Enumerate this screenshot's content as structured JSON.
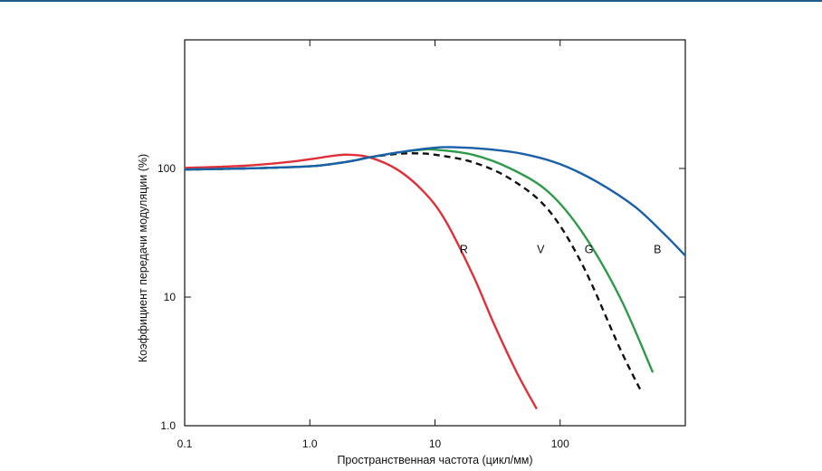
{
  "chart_data": {
    "type": "line",
    "title": "",
    "xlabel": "Пространственная частота (цикл/мм)",
    "ylabel": "Коэффициент передачи модуляции (%)",
    "xscale": "log",
    "yscale": "log",
    "xlim": [
      0.1,
      1000
    ],
    "ylim": [
      1.0,
      1000
    ],
    "grid": false,
    "legend": "none",
    "x_ticks": [
      {
        "value": 0.1,
        "label": "0.1"
      },
      {
        "value": 1,
        "label": "1.0"
      },
      {
        "value": 10,
        "label": "10"
      },
      {
        "value": 100,
        "label": "100"
      },
      {
        "value": 1000,
        "label": ""
      }
    ],
    "y_ticks": [
      {
        "value": 1,
        "label": "1.0"
      },
      {
        "value": 10,
        "label": "10"
      },
      {
        "value": 100,
        "label": "100"
      },
      {
        "value": 1000,
        "label": ""
      }
    ],
    "series": [
      {
        "name": "R",
        "color": "#e0303a",
        "dash": "solid",
        "x": [
          0.1,
          0.3,
          0.6,
          1.0,
          1.5,
          2.0,
          3.0,
          5.0,
          8.0,
          12.0,
          20.0,
          30.0,
          45.0,
          65.0
        ],
        "y": [
          101,
          105,
          111,
          118,
          125,
          128,
          122,
          98,
          67,
          40,
          15,
          6,
          2.6,
          1.35
        ],
        "label_at": {
          "x": 17.0,
          "y": 22
        },
        "label_text": "R"
      },
      {
        "name": "V",
        "color": "#111111",
        "dash": "dashed",
        "x": [
          0.1,
          0.3,
          1.0,
          2.0,
          3.0,
          5.0,
          7.0,
          10.0,
          20.0,
          40.0,
          80.0,
          150.0,
          300.0,
          450.0
        ],
        "y": [
          98,
          100,
          104,
          113,
          122,
          130,
          131,
          128,
          112,
          83,
          48,
          18,
          4.0,
          1.8
        ],
        "label_at": {
          "x": 70,
          "y": 22
        },
        "label_text": "V"
      },
      {
        "name": "G",
        "color": "#2e9a4a",
        "dash": "solid",
        "x": [
          0.1,
          0.3,
          1.0,
          2.0,
          3.0,
          5.0,
          8.0,
          10.0,
          20.0,
          40.0,
          80.0,
          150.0,
          300.0,
          550.0
        ],
        "y": [
          98,
          100,
          104,
          113,
          122,
          133,
          140,
          140,
          128,
          100,
          66,
          32,
          10,
          2.6
        ],
        "label_at": {
          "x": 170,
          "y": 22
        },
        "label_text": "G"
      },
      {
        "name": "B",
        "color": "#1a60a8",
        "dash": "solid",
        "x": [
          0.1,
          0.3,
          1.0,
          2.0,
          3.0,
          5.0,
          10.0,
          15.0,
          25.0,
          50.0,
          100.0,
          200.0,
          400.0,
          700.0,
          1000.0
        ],
        "y": [
          98,
          100,
          104,
          113,
          122,
          133,
          145,
          146,
          142,
          130,
          108,
          78,
          50,
          30,
          21
        ],
        "label_at": {
          "x": 600,
          "y": 22
        },
        "label_text": "B"
      }
    ]
  }
}
